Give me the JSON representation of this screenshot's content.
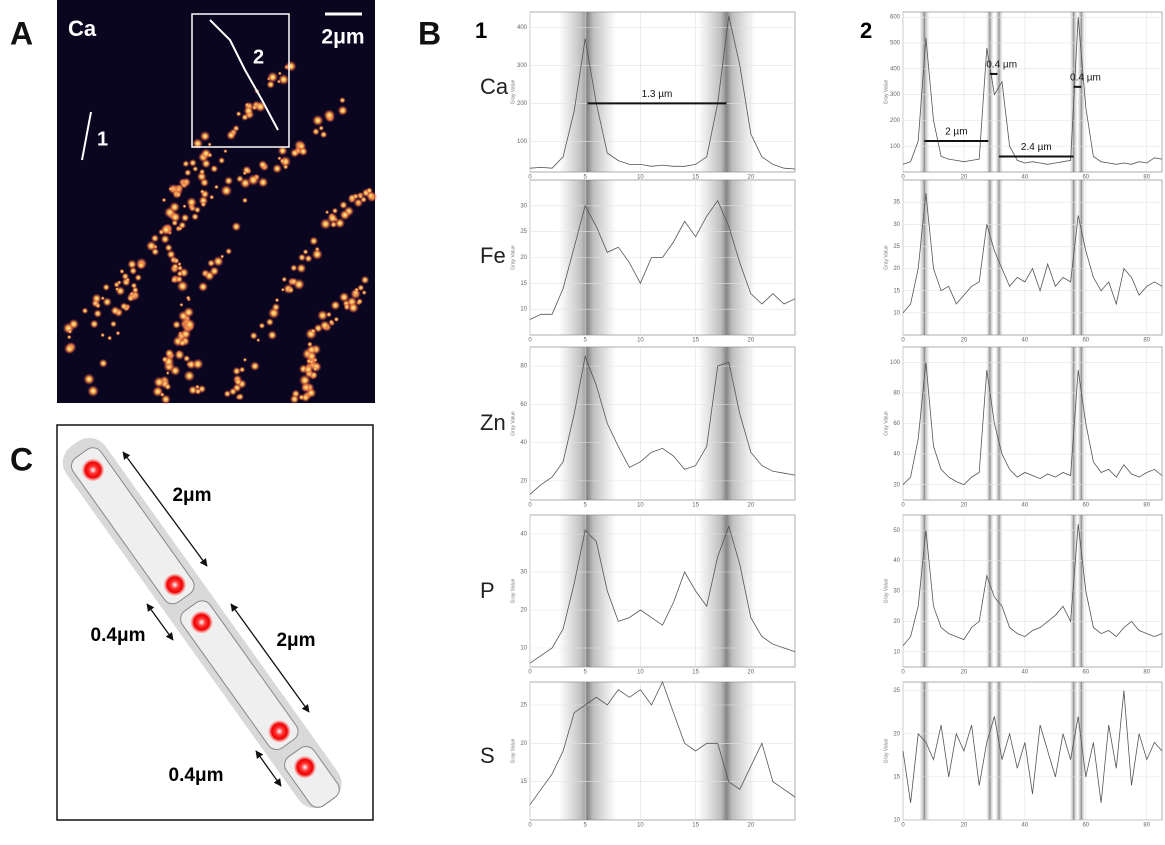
{
  "figure": {
    "panel_labels": [
      "A",
      "B",
      "C"
    ],
    "panel_a": {
      "element": "Ca",
      "scale_bar": "2μm",
      "line_labels": [
        "1",
        "2"
      ]
    },
    "panel_b": {
      "column_labels": [
        "1",
        "2"
      ],
      "row_labels": [
        "Ca",
        "Fe",
        "Zn",
        "P",
        "S"
      ]
    },
    "panel_c": {
      "labels": [
        "2μm",
        "0.4μm",
        "2μm",
        "0.4μm"
      ]
    }
  },
  "chart_data": [
    {
      "type": "line",
      "y_label": "Gray Value",
      "color": "#555",
      "annotations": [
        "1.3 µm"
      ],
      "x": [
        0,
        1,
        2,
        3,
        4,
        5,
        6,
        7,
        8,
        9,
        10,
        11,
        12,
        13,
        14,
        15,
        16,
        17,
        18,
        19,
        20,
        21,
        22,
        23,
        24
      ],
      "values": [
        30,
        32,
        30,
        60,
        180,
        370,
        200,
        70,
        50,
        40,
        40,
        35,
        38,
        35,
        35,
        40,
        60,
        200,
        430,
        300,
        120,
        60,
        40,
        30,
        28
      ],
      "xlim": [
        0,
        24
      ],
      "xticks": [
        0,
        5,
        10,
        15,
        20
      ],
      "ylim": [
        20,
        440
      ],
      "yticks": [
        100,
        200,
        300,
        400
      ],
      "grid": true
    },
    {
      "type": "line",
      "y_label": "Gray Value",
      "color": "#555",
      "x": [
        0,
        1,
        2,
        3,
        4,
        5,
        6,
        7,
        8,
        9,
        10,
        11,
        12,
        13,
        14,
        15,
        16,
        17,
        18,
        19,
        20,
        21,
        22,
        23,
        24
      ],
      "values": [
        8,
        9,
        9,
        14,
        22,
        30,
        26,
        21,
        22,
        19,
        15,
        20,
        20,
        23,
        27,
        24,
        28,
        31,
        26,
        19,
        13,
        11,
        13,
        11,
        12
      ],
      "xlim": [
        0,
        24
      ],
      "xticks": [
        0,
        5,
        10,
        15,
        20
      ],
      "ylim": [
        5,
        35
      ],
      "yticks": [
        10,
        15,
        20,
        25,
        30
      ],
      "grid": true
    },
    {
      "type": "line",
      "y_label": "Gray Value",
      "color": "#555",
      "x": [
        0,
        1,
        2,
        3,
        4,
        5,
        6,
        7,
        8,
        9,
        10,
        11,
        12,
        13,
        14,
        15,
        16,
        17,
        18,
        19,
        20,
        21,
        22,
        23,
        24
      ],
      "values": [
        13,
        18,
        22,
        30,
        55,
        85,
        70,
        50,
        38,
        27,
        30,
        35,
        37,
        33,
        26,
        28,
        38,
        80,
        82,
        55,
        35,
        28,
        25,
        24,
        23
      ],
      "xlim": [
        0,
        24
      ],
      "xticks": [
        0,
        5,
        10,
        15,
        20
      ],
      "ylim": [
        10,
        90
      ],
      "yticks": [
        20,
        40,
        60,
        80
      ],
      "grid": true
    },
    {
      "type": "line",
      "y_label": "Gray Value",
      "color": "#555",
      "x": [
        0,
        1,
        2,
        3,
        4,
        5,
        6,
        7,
        8,
        9,
        10,
        11,
        12,
        13,
        14,
        15,
        16,
        17,
        18,
        19,
        20,
        21,
        22,
        23,
        24
      ],
      "values": [
        6,
        8,
        10,
        15,
        27,
        41,
        38,
        25,
        17,
        18,
        20,
        18,
        16,
        22,
        30,
        25,
        21,
        34,
        42,
        32,
        18,
        13,
        11,
        10,
        9
      ],
      "xlim": [
        0,
        24
      ],
      "xticks": [
        0,
        5,
        10,
        15,
        20
      ],
      "ylim": [
        5,
        45
      ],
      "yticks": [
        10,
        20,
        30,
        40
      ],
      "grid": true
    },
    {
      "type": "line",
      "y_label": "Gray Value",
      "color": "#555",
      "x": [
        0,
        1,
        2,
        3,
        4,
        5,
        6,
        7,
        8,
        9,
        10,
        11,
        12,
        13,
        14,
        15,
        16,
        17,
        18,
        19,
        20,
        21,
        22,
        23,
        24
      ],
      "values": [
        12,
        14,
        16,
        19,
        24,
        25,
        26,
        25,
        27,
        26,
        27,
        25,
        28,
        24,
        20,
        19,
        20,
        20,
        15,
        14,
        17,
        20,
        15,
        14,
        13
      ],
      "xlim": [
        0,
        24
      ],
      "xticks": [
        0,
        5,
        10,
        15,
        20
      ],
      "ylim": [
        10,
        28
      ],
      "yticks": [
        15,
        20,
        25
      ],
      "grid": true
    },
    {
      "type": "line",
      "y_label": "Gray Value",
      "color": "#555",
      "annotations": [
        "2 µm",
        "0.4 µm",
        "2.4 µm",
        "0.4 µm"
      ],
      "x": [
        0,
        2.5,
        5,
        7.5,
        10,
        12.5,
        15,
        17.5,
        20,
        22.5,
        25,
        27.5,
        30,
        32.5,
        35,
        37.5,
        40,
        42.5,
        45,
        47.5,
        50,
        52.5,
        55,
        57.5,
        60,
        62.5,
        65,
        67.5,
        70,
        72.5,
        75,
        77.5,
        80,
        82.5,
        85
      ],
      "values": [
        30,
        40,
        120,
        520,
        200,
        60,
        50,
        45,
        40,
        45,
        50,
        480,
        300,
        350,
        100,
        45,
        35,
        40,
        35,
        30,
        35,
        40,
        45,
        600,
        250,
        60,
        40,
        35,
        30,
        35,
        30,
        40,
        35,
        55,
        50
      ],
      "xlim": [
        0,
        85
      ],
      "xticks": [
        0,
        20,
        40,
        60,
        80
      ],
      "ylim": [
        0,
        620
      ],
      "yticks": [
        100,
        200,
        300,
        400,
        500,
        600
      ],
      "grid": true
    },
    {
      "type": "line",
      "y_label": "Gray Value",
      "color": "#555",
      "x": [
        0,
        2.5,
        5,
        7.5,
        10,
        12.5,
        15,
        17.5,
        20,
        22.5,
        25,
        27.5,
        30,
        32.5,
        35,
        37.5,
        40,
        42.5,
        45,
        47.5,
        50,
        52.5,
        55,
        57.5,
        60,
        62.5,
        65,
        67.5,
        70,
        72.5,
        75,
        77.5,
        80,
        82.5,
        85
      ],
      "values": [
        10,
        12,
        20,
        37,
        20,
        15,
        16,
        12,
        14,
        16,
        17,
        30,
        24,
        20,
        16,
        18,
        17,
        20,
        15,
        21,
        16,
        18,
        17,
        32,
        24,
        18,
        15,
        17,
        12,
        20,
        18,
        14,
        16,
        17,
        16
      ],
      "xlim": [
        0,
        85
      ],
      "xticks": [
        0,
        20,
        40,
        60,
        80
      ],
      "ylim": [
        5,
        40
      ],
      "yticks": [
        10,
        15,
        20,
        25,
        30,
        35
      ],
      "grid": true
    },
    {
      "type": "line",
      "y_label": "Gray Value",
      "color": "#555",
      "x": [
        0,
        2.5,
        5,
        7.5,
        10,
        12.5,
        15,
        17.5,
        20,
        22.5,
        25,
        27.5,
        30,
        32.5,
        35,
        37.5,
        40,
        42.5,
        45,
        47.5,
        50,
        52.5,
        55,
        57.5,
        60,
        62.5,
        65,
        67.5,
        70,
        72.5,
        75,
        77.5,
        80,
        82.5,
        85
      ],
      "values": [
        20,
        25,
        50,
        100,
        45,
        30,
        25,
        22,
        20,
        25,
        28,
        95,
        60,
        40,
        30,
        25,
        28,
        26,
        24,
        27,
        25,
        28,
        26,
        95,
        60,
        35,
        28,
        30,
        25,
        33,
        27,
        25,
        28,
        30,
        26
      ],
      "xlim": [
        0,
        85
      ],
      "xticks": [
        0,
        20,
        40,
        60,
        80
      ],
      "ylim": [
        10,
        110
      ],
      "yticks": [
        20,
        40,
        60,
        80,
        100
      ],
      "grid": true
    },
    {
      "type": "line",
      "y_label": "Gray Value",
      "color": "#555",
      "x": [
        0,
        2.5,
        5,
        7.5,
        10,
        12.5,
        15,
        17.5,
        20,
        22.5,
        25,
        27.5,
        30,
        32.5,
        35,
        37.5,
        40,
        42.5,
        45,
        47.5,
        50,
        52.5,
        55,
        57.5,
        60,
        62.5,
        65,
        67.5,
        70,
        72.5,
        75,
        77.5,
        80,
        82.5,
        85
      ],
      "values": [
        12,
        15,
        25,
        50,
        25,
        18,
        16,
        15,
        14,
        18,
        20,
        35,
        28,
        25,
        18,
        16,
        15,
        17,
        18,
        20,
        22,
        25,
        20,
        52,
        30,
        18,
        16,
        17,
        15,
        18,
        20,
        17,
        16,
        15,
        16
      ],
      "xlim": [
        0,
        85
      ],
      "xticks": [
        0,
        20,
        40,
        60,
        80
      ],
      "ylim": [
        5,
        55
      ],
      "yticks": [
        10,
        20,
        30,
        40,
        50
      ],
      "grid": true
    },
    {
      "type": "line",
      "y_label": "Gray Value",
      "color": "#555",
      "x": [
        0,
        2.5,
        5,
        7.5,
        10,
        12.5,
        15,
        17.5,
        20,
        22.5,
        25,
        27.5,
        30,
        32.5,
        35,
        37.5,
        40,
        42.5,
        45,
        47.5,
        50,
        52.5,
        55,
        57.5,
        60,
        62.5,
        65,
        67.5,
        70,
        72.5,
        75,
        77.5,
        80,
        82.5,
        85
      ],
      "values": [
        18,
        12,
        20,
        19,
        17,
        21,
        15,
        20,
        18,
        21,
        14,
        19,
        22,
        17,
        20,
        16,
        19,
        13,
        21,
        18,
        15,
        20,
        17,
        22,
        15,
        19,
        12,
        21,
        16,
        25,
        14,
        20,
        17,
        19,
        18
      ],
      "xlim": [
        0,
        85
      ],
      "xticks": [
        0,
        20,
        40,
        60,
        80
      ],
      "ylim": [
        10,
        26
      ],
      "yticks": [
        10,
        15,
        20,
        25
      ],
      "grid": true
    }
  ]
}
